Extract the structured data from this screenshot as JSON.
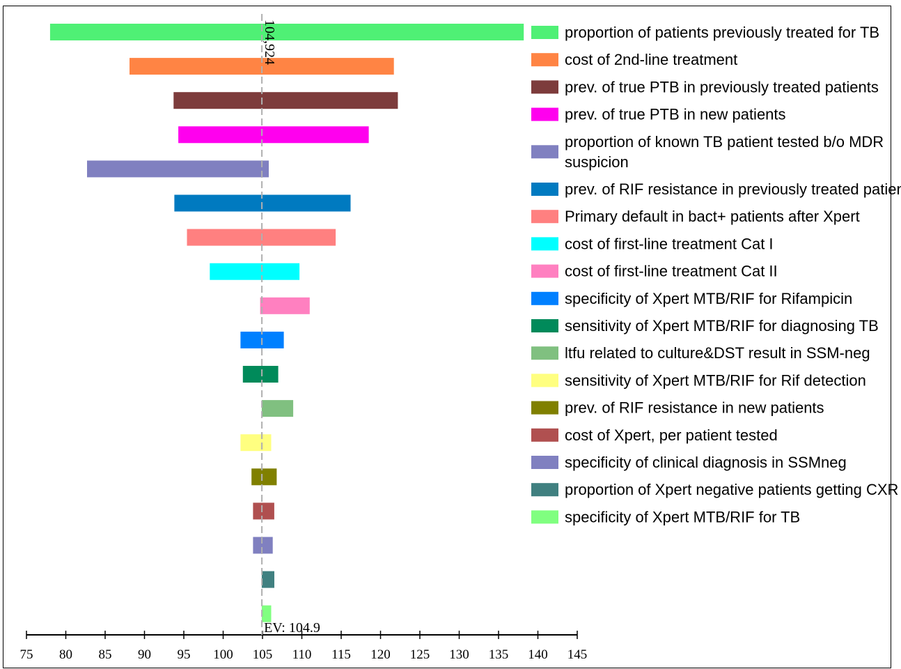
{
  "chart_data": {
    "type": "bar",
    "subtype": "tornado",
    "xlim": [
      75,
      145
    ],
    "x_ticks": [
      75,
      80,
      85,
      90,
      95,
      100,
      105,
      110,
      115,
      120,
      125,
      130,
      135,
      140,
      145
    ],
    "ev_value": 104.924,
    "ev_label": "EV: 104.9",
    "ev_line_label": "104,924",
    "legend_position": "right",
    "bars": [
      {
        "label": "proportion of patients previously treated for TB",
        "low": 78.0,
        "high": 138.2,
        "color": "#4ff075"
      },
      {
        "label": "cost of 2nd-line treatment",
        "low": 88.1,
        "high": 121.7,
        "color": "#ff8444"
      },
      {
        "label": "prev. of true PTB in previously treated patients",
        "low": 93.7,
        "high": 122.2,
        "color": "#7d3c3c"
      },
      {
        "label": "prev. of true PTB in new patients",
        "low": 94.3,
        "high": 118.5,
        "color": "#ff00ee"
      },
      {
        "label": "proportion of known TB patient tested b/o MDR\n suspicion",
        "low": 82.7,
        "high": 105.8,
        "color": "#8080c0"
      },
      {
        "label": "prev. of RIF resistance in previously treated patient",
        "low": 93.8,
        "high": 116.2,
        "color": "#007ac0"
      },
      {
        "label": "Primary default in bact+ patients after Xpert",
        "low": 95.4,
        "high": 114.3,
        "color": "#ff8080"
      },
      {
        "label": "cost of first-line treatment Cat I",
        "low": 98.3,
        "high": 109.7,
        "color": "#00ffff"
      },
      {
        "label": "cost of first-line treatment Cat II",
        "low": 104.7,
        "high": 111.0,
        "color": "#ff80c0"
      },
      {
        "label": "specificity of Xpert MTB/RIF for Rifampicin",
        "low": 102.2,
        "high": 107.7,
        "color": "#0080ff"
      },
      {
        "label": "sensitivity of Xpert MTB/RIF for diagnosing TB",
        "low": 102.5,
        "high": 107.0,
        "color": "#008a5a"
      },
      {
        "label": "ltfu related to culture&DST result in SSM-neg",
        "low": 104.9,
        "high": 108.9,
        "color": "#80c080"
      },
      {
        "label": "sensitivity of Xpert MTB/RIF for Rif detection",
        "low": 102.2,
        "high": 106.1,
        "color": "#ffff80"
      },
      {
        "label": "prev. of RIF resistance in new patients",
        "low": 103.6,
        "high": 106.8,
        "color": "#808000"
      },
      {
        "label": "cost of Xpert, per patient tested",
        "low": 103.8,
        "high": 106.5,
        "color": "#b05050"
      },
      {
        "label": "specificity of clinical diagnosis in SSMneg",
        "low": 103.8,
        "high": 106.3,
        "color": "#8080c0"
      },
      {
        "label": "proportion of Xpert negative patients getting CXR",
        "low": 104.9,
        "high": 106.5,
        "color": "#408080"
      },
      {
        "label": "specificity of Xpert MTB/RIF for TB",
        "low": 104.9,
        "high": 106.1,
        "color": "#80ff80"
      }
    ]
  }
}
